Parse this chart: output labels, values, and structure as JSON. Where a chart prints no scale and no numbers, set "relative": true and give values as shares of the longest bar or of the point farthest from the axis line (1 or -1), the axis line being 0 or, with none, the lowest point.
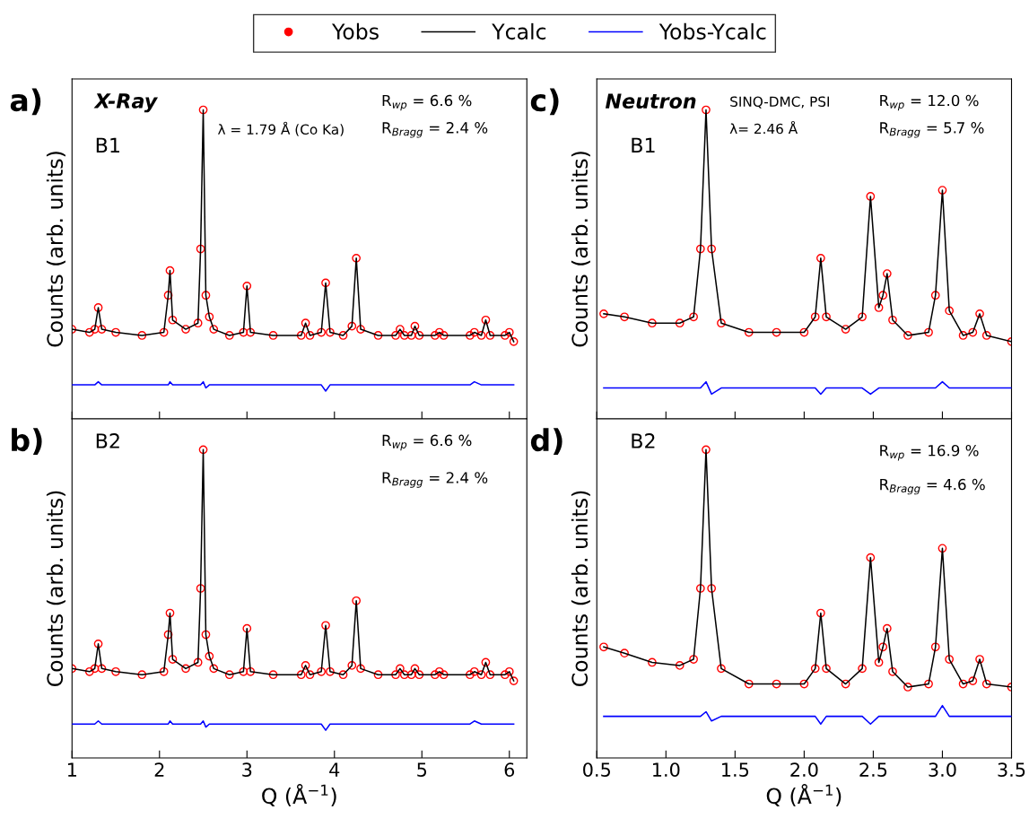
{
  "chart_data": [
    {
      "type": "line",
      "relative": true,
      "ylabel": "Counts (arb. units)",
      "xlim": [
        1,
        6.2
      ],
      "xticks": [
        1,
        2,
        3,
        4,
        5,
        6
      ],
      "tick_labels": false,
      "legend": "top",
      "annotations": [
        "a)",
        "X-Ray",
        "B1",
        "λ = 1.79 Å (Co Ka)",
        "R$_{wp}$ = 6.6 %",
        "R$_{Bragg}$ = 2.4 %"
      ],
      "x": [
        1.0,
        1.2,
        1.26,
        1.3,
        1.34,
        1.5,
        1.8,
        2.05,
        2.1,
        2.12,
        2.15,
        2.3,
        2.44,
        2.47,
        2.5,
        2.53,
        2.57,
        2.62,
        2.8,
        2.96,
        3.0,
        3.04,
        3.3,
        3.62,
        3.67,
        3.72,
        3.85,
        3.9,
        3.95,
        4.1,
        4.2,
        4.25,
        4.3,
        4.5,
        4.7,
        4.75,
        4.8,
        4.88,
        4.92,
        4.97,
        5.15,
        5.2,
        5.25,
        5.55,
        5.6,
        5.68,
        5.73,
        5.78,
        5.95,
        6.0,
        6.05
      ],
      "series": [
        {
          "name": "Yobs",
          "type": "scatter",
          "marker": "circle",
          "color": "#ff0000",
          "values": [
            0.29,
            0.28,
            0.29,
            0.36,
            0.29,
            0.28,
            0.27,
            0.28,
            0.4,
            0.48,
            0.32,
            0.29,
            0.31,
            0.55,
            1.0,
            0.4,
            0.33,
            0.29,
            0.27,
            0.28,
            0.43,
            0.28,
            0.27,
            0.27,
            0.31,
            0.27,
            0.28,
            0.44,
            0.28,
            0.27,
            0.3,
            0.52,
            0.29,
            0.27,
            0.27,
            0.29,
            0.27,
            0.27,
            0.3,
            0.27,
            0.27,
            0.28,
            0.27,
            0.27,
            0.28,
            0.27,
            0.32,
            0.27,
            0.27,
            0.28,
            0.25
          ]
        },
        {
          "name": "Ycalc",
          "type": "line",
          "color": "#000000",
          "values": [
            0.29,
            0.28,
            0.29,
            0.36,
            0.29,
            0.28,
            0.27,
            0.28,
            0.4,
            0.48,
            0.32,
            0.29,
            0.31,
            0.55,
            1.0,
            0.4,
            0.33,
            0.29,
            0.27,
            0.28,
            0.43,
            0.28,
            0.27,
            0.27,
            0.31,
            0.27,
            0.28,
            0.44,
            0.28,
            0.27,
            0.3,
            0.52,
            0.29,
            0.27,
            0.27,
            0.29,
            0.27,
            0.27,
            0.3,
            0.27,
            0.27,
            0.28,
            0.27,
            0.27,
            0.28,
            0.27,
            0.32,
            0.27,
            0.27,
            0.28,
            0.25
          ]
        },
        {
          "name": "Yobs-Ycalc",
          "type": "line",
          "color": "#0000ff",
          "values": [
            0.11,
            0.11,
            0.11,
            0.12,
            0.11,
            0.11,
            0.11,
            0.11,
            0.11,
            0.12,
            0.11,
            0.11,
            0.11,
            0.11,
            0.12,
            0.1,
            0.11,
            0.11,
            0.11,
            0.11,
            0.11,
            0.11,
            0.11,
            0.11,
            0.11,
            0.11,
            0.11,
            0.09,
            0.11,
            0.11,
            0.11,
            0.11,
            0.11,
            0.11,
            0.11,
            0.11,
            0.11,
            0.11,
            0.11,
            0.11,
            0.11,
            0.11,
            0.11,
            0.11,
            0.12,
            0.11,
            0.11,
            0.11,
            0.11,
            0.11,
            0.11
          ]
        }
      ]
    },
    {
      "type": "line",
      "relative": true,
      "ylabel": "Counts (arb. units)",
      "xlabel": "Q (Å$^{−1}$)",
      "xlim": [
        1,
        6.2
      ],
      "xticks": [
        1,
        2,
        3,
        4,
        5,
        6
      ],
      "tick_labels": "x",
      "annotations": [
        "b)",
        "B2",
        "R$_{wp}$ = 6.6 %",
        "R$_{Bragg}$ = 2.4 %"
      ],
      "x": [
        1.0,
        1.2,
        1.26,
        1.3,
        1.34,
        1.5,
        1.8,
        2.05,
        2.1,
        2.12,
        2.15,
        2.3,
        2.44,
        2.47,
        2.5,
        2.53,
        2.57,
        2.62,
        2.8,
        2.96,
        3.0,
        3.04,
        3.3,
        3.62,
        3.67,
        3.72,
        3.85,
        3.9,
        3.95,
        4.1,
        4.2,
        4.25,
        4.3,
        4.5,
        4.7,
        4.75,
        4.8,
        4.88,
        4.92,
        4.97,
        5.15,
        5.2,
        5.25,
        5.55,
        5.6,
        5.68,
        5.73,
        5.78,
        5.95,
        6.0,
        6.05
      ],
      "series": [
        {
          "type": "scatter",
          "marker": "circle",
          "color": "#ff0000",
          "values": [
            0.29,
            0.28,
            0.29,
            0.37,
            0.29,
            0.28,
            0.27,
            0.28,
            0.4,
            0.47,
            0.32,
            0.29,
            0.31,
            0.55,
            1.0,
            0.4,
            0.33,
            0.29,
            0.27,
            0.28,
            0.42,
            0.28,
            0.27,
            0.27,
            0.3,
            0.27,
            0.28,
            0.43,
            0.28,
            0.27,
            0.3,
            0.51,
            0.29,
            0.27,
            0.27,
            0.29,
            0.27,
            0.27,
            0.29,
            0.27,
            0.27,
            0.28,
            0.27,
            0.27,
            0.28,
            0.27,
            0.31,
            0.27,
            0.27,
            0.28,
            0.25
          ]
        },
        {
          "type": "line",
          "color": "#000000",
          "values": [
            0.29,
            0.28,
            0.29,
            0.37,
            0.29,
            0.28,
            0.27,
            0.28,
            0.4,
            0.47,
            0.32,
            0.29,
            0.31,
            0.55,
            1.0,
            0.4,
            0.33,
            0.29,
            0.27,
            0.28,
            0.42,
            0.28,
            0.27,
            0.27,
            0.3,
            0.27,
            0.28,
            0.43,
            0.28,
            0.27,
            0.3,
            0.51,
            0.29,
            0.27,
            0.27,
            0.29,
            0.27,
            0.27,
            0.29,
            0.27,
            0.27,
            0.28,
            0.27,
            0.27,
            0.28,
            0.27,
            0.31,
            0.27,
            0.27,
            0.28,
            0.25
          ]
        },
        {
          "type": "line",
          "color": "#0000ff",
          "values": [
            0.11,
            0.11,
            0.11,
            0.12,
            0.11,
            0.11,
            0.11,
            0.11,
            0.11,
            0.12,
            0.11,
            0.11,
            0.11,
            0.11,
            0.12,
            0.1,
            0.11,
            0.11,
            0.11,
            0.11,
            0.11,
            0.11,
            0.11,
            0.11,
            0.11,
            0.11,
            0.11,
            0.09,
            0.11,
            0.11,
            0.11,
            0.11,
            0.11,
            0.11,
            0.11,
            0.11,
            0.11,
            0.11,
            0.11,
            0.11,
            0.11,
            0.11,
            0.11,
            0.11,
            0.12,
            0.11,
            0.11,
            0.11,
            0.11,
            0.11,
            0.11
          ]
        }
      ]
    },
    {
      "type": "line",
      "relative": true,
      "ylabel": "Counts (arb. units)",
      "xlim": [
        0.5,
        3.5
      ],
      "xticks": [
        {
          "value": 0.5,
          "label": null
        },
        {
          "value": 1.0,
          "label": null
        },
        {
          "value": 1.5,
          "label": null
        },
        {
          "value": 2.0,
          "label": null
        },
        {
          "value": 2.5,
          "label": null
        },
        {
          "value": 3.0,
          "label": null
        },
        {
          "value": 3.5,
          "label": null
        }
      ],
      "tick_labels": false,
      "annotations": [
        "c)",
        "Neutron",
        "B1",
        "SINQ-DMC, PSI",
        "λ= 2.46 Å",
        "R$_{wp}$ = 12.0 %",
        "R$_{Bragg}$ = 5.7 %"
      ],
      "x": [
        0.55,
        0.7,
        0.9,
        1.1,
        1.2,
        1.25,
        1.29,
        1.33,
        1.4,
        1.6,
        1.8,
        2.0,
        2.08,
        2.12,
        2.16,
        2.3,
        2.42,
        2.48,
        2.54,
        2.57,
        2.6,
        2.64,
        2.75,
        2.9,
        2.95,
        3.0,
        3.05,
        3.15,
        3.22,
        3.27,
        3.32,
        3.5
      ],
      "series": [
        {
          "type": "scatter",
          "marker": "circle",
          "color": "#ff0000",
          "values": [
            0.34,
            0.33,
            0.31,
            0.31,
            0.33,
            0.55,
            1.0,
            0.55,
            0.31,
            0.28,
            0.28,
            0.28,
            0.33,
            0.52,
            0.33,
            0.29,
            0.33,
            0.72,
            0.36,
            0.4,
            0.47,
            0.32,
            0.27,
            0.28,
            0.4,
            0.74,
            0.35,
            0.27,
            0.28,
            0.34,
            0.27,
            0.25
          ]
        },
        {
          "type": "line",
          "color": "#000000",
          "values": [
            0.34,
            0.33,
            0.31,
            0.31,
            0.33,
            0.55,
            1.0,
            0.55,
            0.31,
            0.28,
            0.28,
            0.28,
            0.33,
            0.52,
            0.33,
            0.29,
            0.33,
            0.72,
            0.36,
            0.4,
            0.47,
            0.32,
            0.27,
            0.28,
            0.4,
            0.74,
            0.35,
            0.27,
            0.28,
            0.34,
            0.27,
            0.25
          ]
        },
        {
          "type": "line",
          "color": "#0000ff",
          "values": [
            0.1,
            0.1,
            0.1,
            0.1,
            0.1,
            0.1,
            0.12,
            0.08,
            0.1,
            0.1,
            0.1,
            0.1,
            0.1,
            0.08,
            0.1,
            0.1,
            0.1,
            0.08,
            0.1,
            0.1,
            0.1,
            0.1,
            0.1,
            0.1,
            0.1,
            0.12,
            0.1,
            0.1,
            0.1,
            0.1,
            0.1,
            0.1
          ]
        }
      ]
    },
    {
      "type": "line",
      "relative": true,
      "ylabel": "Counts (arb. units)",
      "xlabel": "Q (Å$^{−1}$)",
      "xlim": [
        0.5,
        3.5
      ],
      "xticks": [
        {
          "value": 0.5,
          "label": "0.5"
        },
        {
          "value": 1.0,
          "label": "1.0"
        },
        {
          "value": 1.5,
          "label": "1.5"
        },
        {
          "value": 2.0,
          "label": "2.0"
        },
        {
          "value": 2.5,
          "label": "2.5"
        },
        {
          "value": 3.0,
          "label": "3.0"
        },
        {
          "value": 3.5,
          "label": "3.5"
        }
      ],
      "tick_labels": "x",
      "annotations": [
        "d)",
        "B2",
        "R$_{wp}$ = 16.9 %",
        "R$_{Bragg}$ = 4.6 %"
      ],
      "x": [
        0.55,
        0.7,
        0.9,
        1.1,
        1.2,
        1.25,
        1.29,
        1.33,
        1.4,
        1.6,
        1.8,
        2.0,
        2.08,
        2.12,
        2.16,
        2.3,
        2.42,
        2.48,
        2.54,
        2.57,
        2.6,
        2.64,
        2.75,
        2.9,
        2.95,
        3.0,
        3.05,
        3.15,
        3.22,
        3.27,
        3.32,
        3.5
      ],
      "series": [
        {
          "type": "scatter",
          "marker": "circle",
          "color": "#ff0000",
          "values": [
            0.36,
            0.34,
            0.31,
            0.3,
            0.32,
            0.55,
            1.0,
            0.55,
            0.29,
            0.24,
            0.24,
            0.24,
            0.29,
            0.47,
            0.29,
            0.24,
            0.29,
            0.65,
            0.31,
            0.36,
            0.42,
            0.28,
            0.23,
            0.24,
            0.36,
            0.68,
            0.32,
            0.24,
            0.25,
            0.32,
            0.24,
            0.23
          ]
        },
        {
          "type": "line",
          "color": "#000000",
          "values": [
            0.36,
            0.34,
            0.31,
            0.3,
            0.32,
            0.55,
            1.0,
            0.55,
            0.29,
            0.24,
            0.24,
            0.24,
            0.29,
            0.47,
            0.29,
            0.24,
            0.29,
            0.65,
            0.31,
            0.36,
            0.42,
            0.28,
            0.23,
            0.24,
            0.36,
            0.68,
            0.32,
            0.24,
            0.25,
            0.32,
            0.24,
            0.23
          ]
        },
        {
          "type": "line",
          "color": "#0000ff",
          "values": [
            0.135,
            0.135,
            0.135,
            0.135,
            0.135,
            0.135,
            0.15,
            0.12,
            0.135,
            0.135,
            0.135,
            0.135,
            0.135,
            0.11,
            0.135,
            0.135,
            0.135,
            0.11,
            0.135,
            0.135,
            0.135,
            0.135,
            0.135,
            0.135,
            0.135,
            0.17,
            0.135,
            0.135,
            0.135,
            0.135,
            0.135,
            0.135
          ]
        }
      ]
    }
  ]
}
